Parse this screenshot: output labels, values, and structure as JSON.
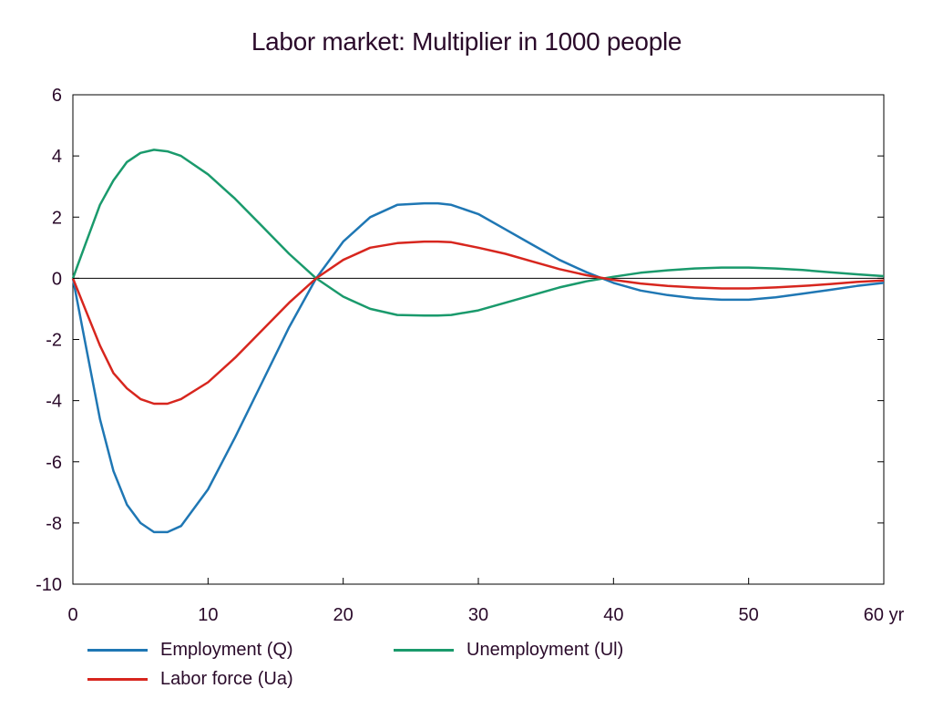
{
  "chart_data": {
    "type": "line",
    "title": "Labor market: Multiplier in 1000 people",
    "xlim": [
      0,
      60
    ],
    "ylim": [
      -10,
      6
    ],
    "xticks": [
      0,
      10,
      20,
      30,
      40,
      50,
      60
    ],
    "xtick_labels": [
      "0",
      "10",
      "20",
      "30",
      "40",
      "50",
      "60 yr"
    ],
    "yticks": [
      6,
      4,
      2,
      0,
      -2,
      -4,
      -6,
      -8,
      -10
    ],
    "ytick_labels": [
      "6",
      "4",
      "2",
      "0",
      "-2",
      "-4",
      "-6",
      "-8",
      "-10"
    ],
    "zero_line": true,
    "grid": false,
    "legend_position": "bottom",
    "series": [
      {
        "name": "Employment (Q)",
        "color": "#1f77b4",
        "x": [
          0,
          1,
          2,
          3,
          4,
          5,
          6,
          7,
          8,
          10,
          12,
          14,
          16,
          18,
          20,
          22,
          24,
          26,
          27,
          28,
          30,
          32,
          34,
          36,
          38,
          40,
          42,
          44,
          46,
          48,
          50,
          52,
          54,
          56,
          58,
          60
        ],
        "y": [
          0,
          -2.3,
          -4.6,
          -6.3,
          -7.4,
          -8.0,
          -8.3,
          -8.3,
          -8.1,
          -6.9,
          -5.2,
          -3.4,
          -1.6,
          0.0,
          1.2,
          2.0,
          2.4,
          2.45,
          2.45,
          2.4,
          2.1,
          1.6,
          1.1,
          0.6,
          0.2,
          -0.15,
          -0.4,
          -0.55,
          -0.65,
          -0.7,
          -0.7,
          -0.62,
          -0.5,
          -0.38,
          -0.25,
          -0.15
        ]
      },
      {
        "name": "Unemployment (Ul)",
        "color": "#1a9a6c",
        "x": [
          0,
          1,
          2,
          3,
          4,
          5,
          6,
          7,
          8,
          10,
          12,
          14,
          16,
          18,
          20,
          22,
          24,
          26,
          27,
          28,
          30,
          32,
          34,
          36,
          38,
          40,
          42,
          44,
          46,
          48,
          50,
          52,
          54,
          56,
          58,
          60
        ],
        "y": [
          0,
          1.2,
          2.4,
          3.2,
          3.8,
          4.1,
          4.2,
          4.15,
          4.0,
          3.4,
          2.6,
          1.7,
          0.8,
          0.0,
          -0.6,
          -1.0,
          -1.2,
          -1.22,
          -1.22,
          -1.2,
          -1.05,
          -0.8,
          -0.55,
          -0.3,
          -0.1,
          0.05,
          0.18,
          0.26,
          0.32,
          0.35,
          0.35,
          0.32,
          0.27,
          0.2,
          0.13,
          0.07
        ]
      },
      {
        "name": "Labor force (Ua)",
        "color": "#d7261e",
        "x": [
          0,
          1,
          2,
          3,
          4,
          5,
          6,
          7,
          8,
          10,
          12,
          14,
          16,
          18,
          20,
          22,
          24,
          26,
          27,
          28,
          30,
          32,
          34,
          36,
          38,
          40,
          42,
          44,
          46,
          48,
          50,
          52,
          54,
          56,
          58,
          60
        ],
        "y": [
          0,
          -1.1,
          -2.2,
          -3.1,
          -3.6,
          -3.95,
          -4.1,
          -4.1,
          -3.95,
          -3.4,
          -2.6,
          -1.7,
          -0.8,
          0.0,
          0.6,
          1.0,
          1.15,
          1.2,
          1.2,
          1.18,
          1.0,
          0.8,
          0.55,
          0.3,
          0.1,
          -0.05,
          -0.17,
          -0.25,
          -0.3,
          -0.33,
          -0.33,
          -0.3,
          -0.25,
          -0.19,
          -0.12,
          -0.07
        ]
      }
    ]
  }
}
